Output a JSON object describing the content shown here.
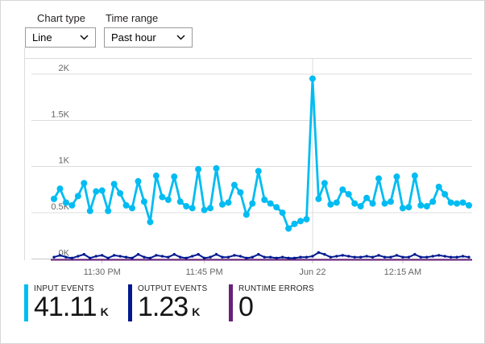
{
  "controls": {
    "chart_type": {
      "label": "Chart type",
      "value": "Line"
    },
    "time_range": {
      "label": "Time range",
      "value": "Past hour"
    }
  },
  "chart_data": {
    "type": "line",
    "title": "",
    "legend": "none",
    "grid": true,
    "unit": "events",
    "x_axis": {
      "ticks": [
        {
          "label": "11:30 PM",
          "index": 8
        },
        {
          "label": "11:45 PM",
          "index": 25
        },
        {
          "label": "Jun 22",
          "index": 43
        },
        {
          "label": "12:15 AM",
          "index": 58
        }
      ],
      "date_boundary_index": 43,
      "point_interval": "~1 minute"
    },
    "y_axis": {
      "ticks": [
        {
          "label": "0K",
          "value": 0
        },
        {
          "label": "0.5K",
          "value": 500
        },
        {
          "label": "1K",
          "value": 1000
        },
        {
          "label": "1.5K",
          "value": 1500
        },
        {
          "label": "2K",
          "value": 2000
        }
      ],
      "range": [
        0,
        2160
      ]
    },
    "series": [
      {
        "name": "Input Events",
        "color": "#00bcf2",
        "values": [
          650,
          760,
          610,
          580,
          680,
          820,
          520,
          730,
          740,
          520,
          810,
          710,
          580,
          550,
          840,
          620,
          400,
          900,
          670,
          640,
          890,
          620,
          570,
          550,
          970,
          530,
          550,
          980,
          590,
          610,
          800,
          720,
          480,
          600,
          950,
          640,
          600,
          560,
          500,
          330,
          380,
          410,
          430,
          1950,
          650,
          820,
          590,
          610,
          750,
          700,
          600,
          570,
          660,
          600,
          870,
          600,
          620,
          890,
          550,
          560,
          900,
          580,
          570,
          620,
          780,
          700,
          610,
          600,
          610,
          580
        ]
      },
      {
        "name": "Output Events",
        "color": "#00188f",
        "values": [
          20,
          40,
          20,
          10,
          30,
          50,
          10,
          30,
          40,
          10,
          40,
          30,
          20,
          10,
          50,
          20,
          10,
          40,
          30,
          20,
          50,
          20,
          10,
          30,
          50,
          10,
          20,
          50,
          20,
          20,
          40,
          30,
          10,
          20,
          50,
          20,
          20,
          10,
          20,
          10,
          10,
          20,
          20,
          30,
          70,
          50,
          20,
          30,
          40,
          30,
          20,
          20,
          30,
          20,
          40,
          20,
          20,
          40,
          20,
          20,
          50,
          20,
          20,
          30,
          40,
          30,
          20,
          20,
          30,
          20
        ]
      },
      {
        "name": "Runtime Errors",
        "color": "#68217a",
        "flat_value": 0
      }
    ]
  },
  "metrics": {
    "items": [
      {
        "label": "INPUT EVENTS",
        "value": "41.11",
        "suffix": "K",
        "color": "#00bcf2"
      },
      {
        "label": "OUTPUT EVENTS",
        "value": "1.23",
        "suffix": "K",
        "color": "#00188f"
      },
      {
        "label": "RUNTIME ERRORS",
        "value": "0",
        "suffix": "",
        "color": "#68217a"
      }
    ]
  },
  "colors": {
    "gridline": "#dcdcdc",
    "baseline": "#c8c8c8",
    "axis_text": "#666666",
    "border": "#d7d7d7"
  }
}
